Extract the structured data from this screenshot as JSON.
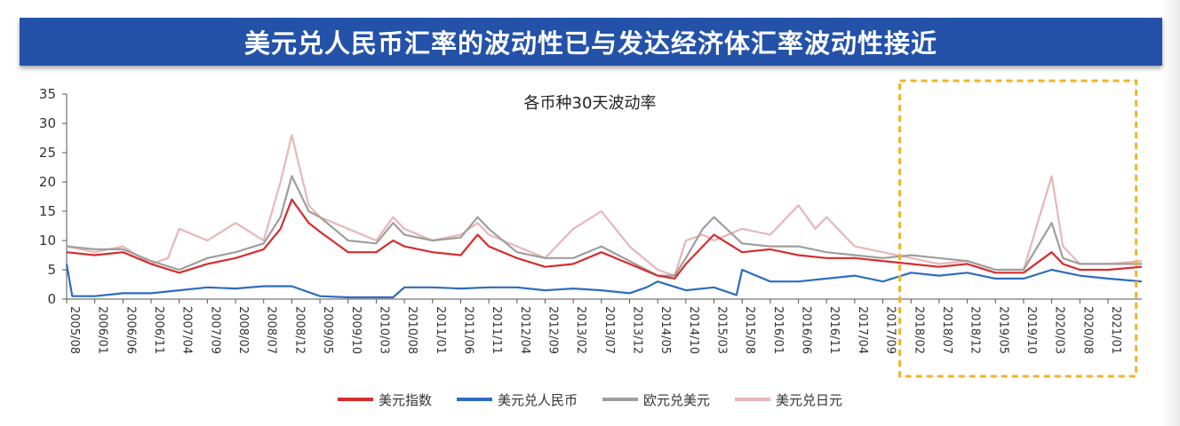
{
  "header": {
    "title": "美元兑人民币汇率的波动性已与发达经济体汇率波动性接近"
  },
  "chart_data": {
    "type": "line",
    "title": "各币种30天波动率",
    "ylim": [
      0,
      35
    ],
    "y_ticks": [
      "0",
      "5",
      "10",
      "15",
      "20",
      "25",
      "30",
      "35"
    ],
    "x_ticks": [
      "2005/08",
      "2006/01",
      "2006/06",
      "2006/11",
      "2007/04",
      "2007/09",
      "2008/02",
      "2008/07",
      "2008/12",
      "2009/05",
      "2009/10",
      "2010/03",
      "2010/08",
      "2011/01",
      "2011/06",
      "2011/11",
      "2012/04",
      "2012/09",
      "2013/02",
      "2013/07",
      "2013/12",
      "2014/05",
      "2014/10",
      "2015/03",
      "2015/08",
      "2016/01",
      "2016/06",
      "2016/11",
      "2017/04",
      "2017/09",
      "2018/02",
      "2018/07",
      "2018/12",
      "2019/05",
      "2019/10",
      "2020/03",
      "2020/08",
      "2021/01"
    ],
    "x_range": [
      "2005/08",
      "2021/07"
    ],
    "highlight": {
      "from": "2017/12",
      "to": "2021/06",
      "style": "dashed",
      "color": "#f0b429"
    },
    "legend_position": "bottom",
    "series": [
      {
        "name": "美元指数",
        "color": "#d62d2d",
        "points": [
          [
            "2005/08",
            8
          ],
          [
            "2006/01",
            7.5
          ],
          [
            "2006/06",
            8
          ],
          [
            "2006/11",
            6
          ],
          [
            "2007/04",
            4.5
          ],
          [
            "2007/09",
            6
          ],
          [
            "2008/02",
            7
          ],
          [
            "2008/07",
            8.5
          ],
          [
            "2008/10",
            12
          ],
          [
            "2008/12",
            17
          ],
          [
            "2009/03",
            13
          ],
          [
            "2009/05",
            11.5
          ],
          [
            "2009/10",
            8
          ],
          [
            "2010/03",
            8
          ],
          [
            "2010/06",
            10
          ],
          [
            "2010/08",
            9
          ],
          [
            "2011/01",
            8
          ],
          [
            "2011/06",
            7.5
          ],
          [
            "2011/09",
            11
          ],
          [
            "2011/11",
            9
          ],
          [
            "2012/04",
            7
          ],
          [
            "2012/09",
            5.5
          ],
          [
            "2013/02",
            6
          ],
          [
            "2013/07",
            8
          ],
          [
            "2013/12",
            6
          ],
          [
            "2014/05",
            4
          ],
          [
            "2014/08",
            3.5
          ],
          [
            "2014/10",
            6
          ],
          [
            "2015/01",
            9
          ],
          [
            "2015/03",
            11
          ],
          [
            "2015/08",
            8
          ],
          [
            "2016/01",
            8.5
          ],
          [
            "2016/06",
            7.5
          ],
          [
            "2016/11",
            7
          ],
          [
            "2017/04",
            7
          ],
          [
            "2017/09",
            6.5
          ],
          [
            "2018/02",
            6
          ],
          [
            "2018/07",
            5.5
          ],
          [
            "2018/12",
            6
          ],
          [
            "2019/05",
            4.5
          ],
          [
            "2019/10",
            4.5
          ],
          [
            "2020/03",
            8
          ],
          [
            "2020/05",
            6
          ],
          [
            "2020/08",
            5
          ],
          [
            "2021/01",
            5
          ],
          [
            "2021/07",
            5.5
          ]
        ]
      },
      {
        "name": "美元兑人民币",
        "color": "#2e6cbf",
        "points": [
          [
            "2005/08",
            6
          ],
          [
            "2005/09",
            0.5
          ],
          [
            "2006/01",
            0.5
          ],
          [
            "2006/06",
            1
          ],
          [
            "2006/11",
            1
          ],
          [
            "2007/04",
            1.5
          ],
          [
            "2007/09",
            2
          ],
          [
            "2008/02",
            1.8
          ],
          [
            "2008/07",
            2.2
          ],
          [
            "2008/12",
            2.2
          ],
          [
            "2009/05",
            0.5
          ],
          [
            "2009/10",
            0.3
          ],
          [
            "2010/03",
            0.3
          ],
          [
            "2010/06",
            0.3
          ],
          [
            "2010/08",
            2
          ],
          [
            "2011/01",
            2
          ],
          [
            "2011/06",
            1.8
          ],
          [
            "2011/11",
            2
          ],
          [
            "2012/04",
            2
          ],
          [
            "2012/09",
            1.5
          ],
          [
            "2013/02",
            1.8
          ],
          [
            "2013/07",
            1.5
          ],
          [
            "2013/12",
            1
          ],
          [
            "2014/03",
            2
          ],
          [
            "2014/05",
            3
          ],
          [
            "2014/10",
            1.5
          ],
          [
            "2015/03",
            2
          ],
          [
            "2015/07",
            0.7
          ],
          [
            "2015/08",
            5
          ],
          [
            "2016/01",
            3
          ],
          [
            "2016/06",
            3
          ],
          [
            "2016/11",
            3.5
          ],
          [
            "2017/04",
            4
          ],
          [
            "2017/09",
            3
          ],
          [
            "2018/02",
            4.5
          ],
          [
            "2018/07",
            4
          ],
          [
            "2018/12",
            4.5
          ],
          [
            "2019/05",
            3.5
          ],
          [
            "2019/10",
            3.5
          ],
          [
            "2020/03",
            5
          ],
          [
            "2020/08",
            4
          ],
          [
            "2021/01",
            3.5
          ],
          [
            "2021/07",
            3
          ]
        ]
      },
      {
        "name": "欧元兑美元",
        "color": "#9e9e9e",
        "points": [
          [
            "2005/08",
            9
          ],
          [
            "2006/01",
            8.5
          ],
          [
            "2006/06",
            8.5
          ],
          [
            "2006/11",
            6.5
          ],
          [
            "2007/04",
            5
          ],
          [
            "2007/09",
            7
          ],
          [
            "2008/02",
            8
          ],
          [
            "2008/07",
            9.5
          ],
          [
            "2008/10",
            14
          ],
          [
            "2008/12",
            21
          ],
          [
            "2009/03",
            15
          ],
          [
            "2009/05",
            14
          ],
          [
            "2009/10",
            10
          ],
          [
            "2010/03",
            9.5
          ],
          [
            "2010/06",
            13
          ],
          [
            "2010/08",
            11
          ],
          [
            "2011/01",
            10
          ],
          [
            "2011/06",
            10.5
          ],
          [
            "2011/09",
            14
          ],
          [
            "2011/11",
            12
          ],
          [
            "2012/04",
            8
          ],
          [
            "2012/09",
            7
          ],
          [
            "2013/02",
            7
          ],
          [
            "2013/07",
            9
          ],
          [
            "2013/12",
            6.5
          ],
          [
            "2014/05",
            4
          ],
          [
            "2014/08",
            4
          ],
          [
            "2014/10",
            7
          ],
          [
            "2015/01",
            12
          ],
          [
            "2015/03",
            14
          ],
          [
            "2015/08",
            9.5
          ],
          [
            "2016/01",
            9
          ],
          [
            "2016/06",
            9
          ],
          [
            "2016/11",
            8
          ],
          [
            "2017/04",
            7.5
          ],
          [
            "2017/09",
            7
          ],
          [
            "2018/02",
            7.5
          ],
          [
            "2018/07",
            7
          ],
          [
            "2018/12",
            6.5
          ],
          [
            "2019/05",
            5
          ],
          [
            "2019/10",
            5
          ],
          [
            "2020/03",
            13
          ],
          [
            "2020/05",
            7
          ],
          [
            "2020/08",
            6
          ],
          [
            "2021/01",
            6
          ],
          [
            "2021/07",
            6
          ]
        ]
      },
      {
        "name": "美元兑日元",
        "color": "#e8b6b8",
        "points": [
          [
            "2005/08",
            9
          ],
          [
            "2006/01",
            8
          ],
          [
            "2006/06",
            9
          ],
          [
            "2006/11",
            6
          ],
          [
            "2007/02",
            7
          ],
          [
            "2007/04",
            12
          ],
          [
            "2007/09",
            10
          ],
          [
            "2008/02",
            13
          ],
          [
            "2008/07",
            10
          ],
          [
            "2008/10",
            20
          ],
          [
            "2008/12",
            28
          ],
          [
            "2009/03",
            16
          ],
          [
            "2009/05",
            14
          ],
          [
            "2009/10",
            12
          ],
          [
            "2010/03",
            10
          ],
          [
            "2010/06",
            14
          ],
          [
            "2010/08",
            12
          ],
          [
            "2011/01",
            10
          ],
          [
            "2011/06",
            11
          ],
          [
            "2011/09",
            13
          ],
          [
            "2011/11",
            11
          ],
          [
            "2012/04",
            9
          ],
          [
            "2012/09",
            7
          ],
          [
            "2013/02",
            12
          ],
          [
            "2013/07",
            15
          ],
          [
            "2013/12",
            9
          ],
          [
            "2014/05",
            5
          ],
          [
            "2014/08",
            4
          ],
          [
            "2014/10",
            10
          ],
          [
            "2015/01",
            11
          ],
          [
            "2015/03",
            10
          ],
          [
            "2015/08",
            12
          ],
          [
            "2016/01",
            11
          ],
          [
            "2016/06",
            16
          ],
          [
            "2016/09",
            12
          ],
          [
            "2016/11",
            14
          ],
          [
            "2017/04",
            9
          ],
          [
            "2017/09",
            8
          ],
          [
            "2018/02",
            7
          ],
          [
            "2018/07",
            6
          ],
          [
            "2018/12",
            6.5
          ],
          [
            "2019/05",
            5
          ],
          [
            "2019/10",
            5
          ],
          [
            "2020/03",
            21
          ],
          [
            "2020/05",
            9
          ],
          [
            "2020/08",
            6
          ],
          [
            "2021/01",
            6
          ],
          [
            "2021/07",
            6.5
          ]
        ]
      }
    ]
  }
}
